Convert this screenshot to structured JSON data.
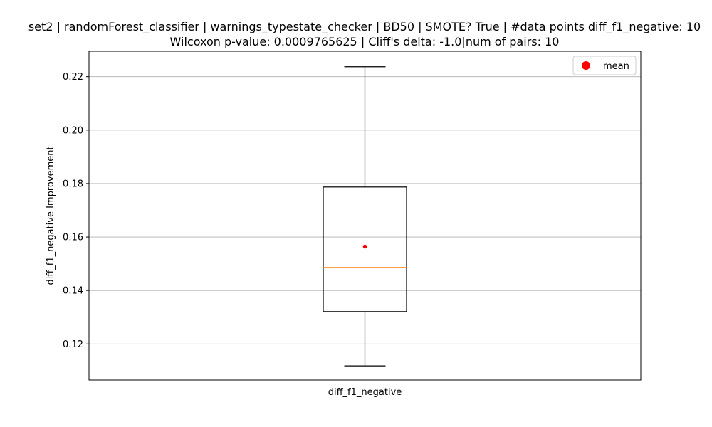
{
  "chart_data": {
    "type": "box",
    "title_lines": [
      "set2 | randomForest_classifier | warnings_typestate_checker | BD50 | SMOTE? True | #data points diff_f1_negative: 10",
      "Wilcoxon p-value: 0.0009765625 | Cliff's delta: -1.0|num of pairs: 10"
    ],
    "xlabel": "",
    "ylabel": "diff_f1_negative Improvement",
    "categories": [
      "diff_f1_negative"
    ],
    "ylim": [
      0.1065,
      0.2295
    ],
    "yticks": [
      0.12,
      0.14,
      0.16,
      0.18,
      0.2,
      0.22
    ],
    "ytick_labels": [
      "0.12",
      "0.14",
      "0.16",
      "0.18",
      "0.20",
      "0.22"
    ],
    "grid": true,
    "legend": {
      "position": "top-right",
      "entries": [
        "mean"
      ]
    },
    "boxes": [
      {
        "category": "diff_f1_negative",
        "whisker_low": 0.1118,
        "q1": 0.1321,
        "median": 0.1486,
        "q3": 0.1787,
        "whisker_high": 0.2237,
        "mean": 0.1564
      }
    ],
    "colors": {
      "box": "#000000",
      "median": "#ff7f0e",
      "mean": "#ff0000",
      "grid": "#b0b0b0"
    }
  }
}
